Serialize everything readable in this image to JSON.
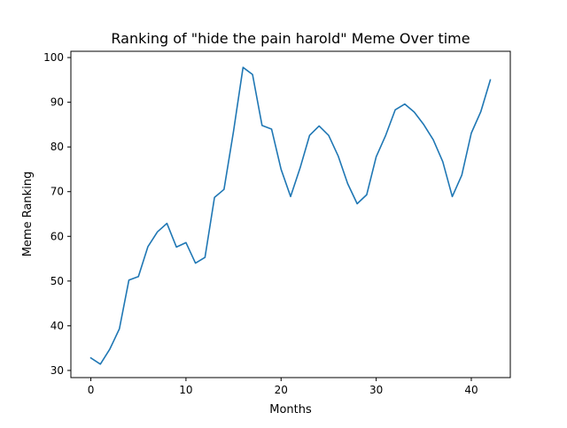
{
  "chart_data": {
    "type": "line",
    "title": "Ranking of \"hide the pain harold\" Meme Over time",
    "xlabel": "Months",
    "ylabel": "Meme Ranking",
    "xlim": [
      -2.1,
      44.1
    ],
    "ylim": [
      28.4,
      101.4
    ],
    "xticks": [
      0,
      10,
      20,
      30,
      40
    ],
    "yticks": [
      30,
      40,
      50,
      60,
      70,
      80,
      90,
      100
    ],
    "grid": false,
    "legend": "none",
    "series": [
      {
        "color": "#1f77b4",
        "x": [
          0,
          1,
          2,
          3,
          4,
          5,
          6,
          7,
          8,
          9,
          10,
          11,
          12,
          13,
          14,
          15,
          16,
          17,
          18,
          19,
          20,
          21,
          22,
          23,
          24,
          25,
          26,
          27,
          28,
          29,
          30,
          31,
          32,
          33,
          34,
          35,
          36,
          37,
          38,
          39,
          40,
          41,
          42
        ],
        "y": [
          32.8,
          31.4,
          34.8,
          39.3,
          50.2,
          51,
          57.7,
          61,
          62.9,
          57.6,
          58.6,
          54,
          55.3,
          68.7,
          70.5,
          83.5,
          97.8,
          96.2,
          84.8,
          84,
          75,
          68.9,
          75.3,
          82.6,
          84.7,
          82.6,
          78,
          71.8,
          67.3,
          69.3,
          77.8,
          82.6,
          88.3,
          89.6,
          87.8,
          85,
          81.6,
          76.7,
          68.9,
          73.7,
          83.1,
          87.9,
          95
        ]
      }
    ]
  }
}
